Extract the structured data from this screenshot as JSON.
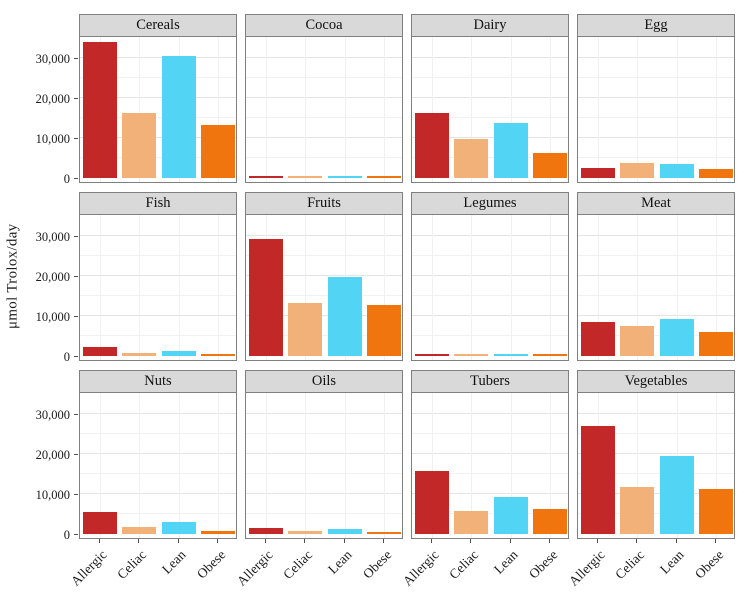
{
  "chart_data": {
    "type": "bar",
    "title": "",
    "ylabel": "μmol Trolox/day",
    "xlabel": "",
    "categories": [
      "Allergic",
      "Celiac",
      "Lean",
      "Obese"
    ],
    "series_colors": [
      "#c22828",
      "#f2b179",
      "#52d4f5",
      "#f0750e"
    ],
    "y_ticks": [
      "0",
      "10,000",
      "20,000",
      "30,000"
    ],
    "y_tick_values": [
      0,
      10000,
      20000,
      30000
    ],
    "ylim": [
      0,
      35500
    ],
    "grid": {
      "major_every": 10000,
      "minor_every": 5000,
      "vertical_at_categories": true
    },
    "legend": "none",
    "facets": [
      {
        "title": "Cereals",
        "values": [
          34000,
          16250,
          30500,
          13250
        ]
      },
      {
        "title": "Cocoa",
        "values": [
          500,
          400,
          550,
          400
        ]
      },
      {
        "title": "Dairy",
        "values": [
          16250,
          9750,
          13750,
          6250
        ]
      },
      {
        "title": "Egg",
        "values": [
          2500,
          3750,
          3500,
          2250
        ]
      },
      {
        "title": "Fish",
        "values": [
          2250,
          750,
          1250,
          500
        ]
      },
      {
        "title": "Fruits",
        "values": [
          29250,
          13250,
          19750,
          12750
        ]
      },
      {
        "title": "Legumes",
        "values": [
          600,
          500,
          600,
          400
        ]
      },
      {
        "title": "Meat",
        "values": [
          8500,
          7500,
          9250,
          6000
        ]
      },
      {
        "title": "Nuts",
        "values": [
          5500,
          1750,
          3000,
          750
        ]
      },
      {
        "title": "Oils",
        "values": [
          1500,
          750,
          1250,
          500
        ]
      },
      {
        "title": "Tubers",
        "values": [
          15750,
          5750,
          9250,
          6250
        ]
      },
      {
        "title": "Vegetables",
        "values": [
          27000,
          11750,
          19500,
          11250
        ]
      }
    ],
    "style": {
      "strip_bg": "#d9d9d9",
      "panel_border": "#808080",
      "grid_major": "#e4e4e4",
      "grid_minor": "#f1f1f1",
      "text_color": "#1a1a1a"
    }
  }
}
